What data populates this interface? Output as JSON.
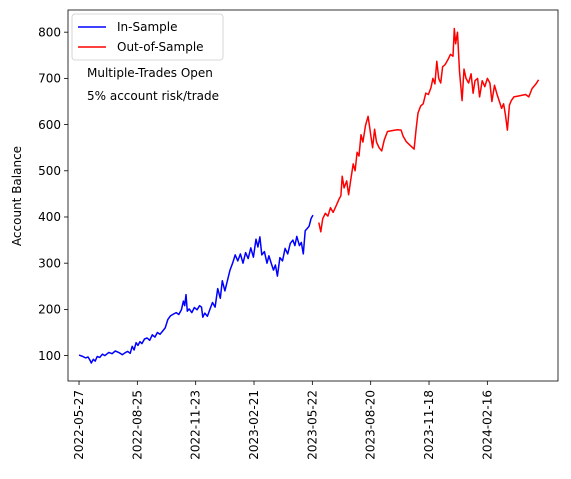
{
  "chart_data": {
    "type": "line",
    "title": "",
    "xlabel": "",
    "ylabel": "Account Balance",
    "xlim": [
      "2022-05-10",
      "2024-06-04"
    ],
    "ylim": [
      45,
      848
    ],
    "x_ticks": [
      "2022-05-27",
      "2022-08-25",
      "2022-11-23",
      "2023-02-21",
      "2023-05-22",
      "2023-08-20",
      "2023-11-18",
      "2024-02-16"
    ],
    "y_ticks": [
      100,
      200,
      300,
      400,
      500,
      600,
      700,
      800
    ],
    "grid": false,
    "legend_position": "top-left",
    "annotations": [
      "Multiple-Trades Open",
      "5% account risk/trade"
    ],
    "series": [
      {
        "name": "In-Sample",
        "color": "#0000ff",
        "points": [
          [
            "2022-05-27",
            101
          ],
          [
            "2022-06-02",
            98
          ],
          [
            "2022-06-06",
            95
          ],
          [
            "2022-06-10",
            97
          ],
          [
            "2022-06-13",
            90
          ],
          [
            "2022-06-15",
            84
          ],
          [
            "2022-06-18",
            92
          ],
          [
            "2022-06-21",
            88
          ],
          [
            "2022-06-24",
            98
          ],
          [
            "2022-06-28",
            96
          ],
          [
            "2022-07-02",
            103
          ],
          [
            "2022-07-06",
            100
          ],
          [
            "2022-07-12",
            107
          ],
          [
            "2022-07-17",
            104
          ],
          [
            "2022-07-22",
            110
          ],
          [
            "2022-07-27",
            107
          ],
          [
            "2022-08-02",
            102
          ],
          [
            "2022-08-06",
            106
          ],
          [
            "2022-08-10",
            109
          ],
          [
            "2022-08-14",
            105
          ],
          [
            "2022-08-17",
            120
          ],
          [
            "2022-08-20",
            112
          ],
          [
            "2022-08-23",
            128
          ],
          [
            "2022-08-26",
            122
          ],
          [
            "2022-08-29",
            130
          ],
          [
            "2022-09-01",
            126
          ],
          [
            "2022-09-05",
            136
          ],
          [
            "2022-09-09",
            138
          ],
          [
            "2022-09-13",
            133
          ],
          [
            "2022-09-17",
            145
          ],
          [
            "2022-09-21",
            140
          ],
          [
            "2022-09-25",
            150
          ],
          [
            "2022-09-29",
            146
          ],
          [
            "2022-10-03",
            153
          ],
          [
            "2022-10-07",
            160
          ],
          [
            "2022-10-11",
            178
          ],
          [
            "2022-10-15",
            186
          ],
          [
            "2022-10-20",
            190
          ],
          [
            "2022-10-24",
            193
          ],
          [
            "2022-10-28",
            189
          ],
          [
            "2022-11-01",
            199
          ],
          [
            "2022-11-04",
            218
          ],
          [
            "2022-11-06",
            208
          ],
          [
            "2022-11-08",
            232
          ],
          [
            "2022-11-10",
            196
          ],
          [
            "2022-11-13",
            201
          ],
          [
            "2022-11-17",
            193
          ],
          [
            "2022-11-21",
            204
          ],
          [
            "2022-11-25",
            199
          ],
          [
            "2022-11-29",
            208
          ],
          [
            "2022-12-02",
            205
          ],
          [
            "2022-12-04",
            183
          ],
          [
            "2022-12-07",
            192
          ],
          [
            "2022-12-11",
            185
          ],
          [
            "2022-12-15",
            200
          ],
          [
            "2022-12-19",
            215
          ],
          [
            "2022-12-23",
            205
          ],
          [
            "2022-12-27",
            245
          ],
          [
            "2022-12-31",
            224
          ],
          [
            "2023-01-03",
            262
          ],
          [
            "2023-01-07",
            240
          ],
          [
            "2023-01-11",
            262
          ],
          [
            "2023-01-15",
            285
          ],
          [
            "2023-01-19",
            300
          ],
          [
            "2023-01-23",
            318
          ],
          [
            "2023-01-27",
            305
          ],
          [
            "2023-01-31",
            320
          ],
          [
            "2023-02-04",
            300
          ],
          [
            "2023-02-08",
            323
          ],
          [
            "2023-02-12",
            310
          ],
          [
            "2023-02-16",
            333
          ],
          [
            "2023-02-20",
            313
          ],
          [
            "2023-02-24",
            352
          ],
          [
            "2023-02-27",
            335
          ],
          [
            "2023-03-02",
            357
          ],
          [
            "2023-03-05",
            318
          ],
          [
            "2023-03-09",
            325
          ],
          [
            "2023-03-13",
            300
          ],
          [
            "2023-03-16",
            316
          ],
          [
            "2023-03-20",
            298
          ],
          [
            "2023-03-23",
            285
          ],
          [
            "2023-03-26",
            296
          ],
          [
            "2023-03-29",
            272
          ],
          [
            "2023-04-02",
            312
          ],
          [
            "2023-04-06",
            305
          ],
          [
            "2023-04-10",
            332
          ],
          [
            "2023-04-14",
            320
          ],
          [
            "2023-04-18",
            343
          ],
          [
            "2023-04-22",
            350
          ],
          [
            "2023-04-25",
            338
          ],
          [
            "2023-04-28",
            358
          ],
          [
            "2023-05-02",
            338
          ],
          [
            "2023-05-05",
            345
          ],
          [
            "2023-05-08",
            320
          ],
          [
            "2023-05-11",
            370
          ],
          [
            "2023-05-14",
            375
          ],
          [
            "2023-05-17",
            380
          ],
          [
            "2023-05-20",
            397
          ],
          [
            "2023-05-23",
            404
          ]
        ]
      },
      {
        "name": "Out-of-Sample",
        "color": "#ff0000",
        "points": [
          [
            "2023-06-01",
            388
          ],
          [
            "2023-06-04",
            368
          ],
          [
            "2023-06-07",
            396
          ],
          [
            "2023-06-11",
            408
          ],
          [
            "2023-06-15",
            402
          ],
          [
            "2023-06-19",
            420
          ],
          [
            "2023-06-23",
            410
          ],
          [
            "2023-06-28",
            425
          ],
          [
            "2023-07-02",
            438
          ],
          [
            "2023-07-05",
            446
          ],
          [
            "2023-07-07",
            488
          ],
          [
            "2023-07-10",
            463
          ],
          [
            "2023-07-14",
            478
          ],
          [
            "2023-07-17",
            448
          ],
          [
            "2023-07-20",
            478
          ],
          [
            "2023-07-24",
            515
          ],
          [
            "2023-07-27",
            500
          ],
          [
            "2023-07-30",
            540
          ],
          [
            "2023-08-02",
            532
          ],
          [
            "2023-08-05",
            578
          ],
          [
            "2023-08-08",
            562
          ],
          [
            "2023-08-12",
            598
          ],
          [
            "2023-08-16",
            618
          ],
          [
            "2023-08-20",
            578
          ],
          [
            "2023-08-23",
            550
          ],
          [
            "2023-08-26",
            590
          ],
          [
            "2023-08-29",
            562
          ],
          [
            "2023-09-02",
            550
          ],
          [
            "2023-09-06",
            543
          ],
          [
            "2023-09-10",
            567
          ],
          [
            "2023-09-15",
            585
          ],
          [
            "2023-09-22",
            587
          ],
          [
            "2023-09-30",
            589
          ],
          [
            "2023-10-06",
            588
          ],
          [
            "2023-10-09",
            575
          ],
          [
            "2023-10-14",
            563
          ],
          [
            "2023-10-20",
            555
          ],
          [
            "2023-10-26",
            547
          ],
          [
            "2023-10-29",
            590
          ],
          [
            "2023-11-01",
            625
          ],
          [
            "2023-11-05",
            640
          ],
          [
            "2023-11-09",
            645
          ],
          [
            "2023-11-13",
            668
          ],
          [
            "2023-11-17",
            665
          ],
          [
            "2023-11-21",
            680
          ],
          [
            "2023-11-24",
            700
          ],
          [
            "2023-11-27",
            688
          ],
          [
            "2023-11-30",
            737
          ],
          [
            "2023-12-03",
            700
          ],
          [
            "2023-12-06",
            690
          ],
          [
            "2023-12-09",
            725
          ],
          [
            "2023-12-13",
            730
          ],
          [
            "2023-12-17",
            740
          ],
          [
            "2023-12-21",
            752
          ],
          [
            "2023-12-25",
            748
          ],
          [
            "2023-12-27",
            808
          ],
          [
            "2023-12-29",
            775
          ],
          [
            "2024-01-01",
            800
          ],
          [
            "2024-01-04",
            715
          ],
          [
            "2024-01-08",
            652
          ],
          [
            "2024-01-11",
            720
          ],
          [
            "2024-01-14",
            700
          ],
          [
            "2024-01-18",
            690
          ],
          [
            "2024-01-22",
            710
          ],
          [
            "2024-01-25",
            668
          ],
          [
            "2024-01-28",
            695
          ],
          [
            "2024-02-01",
            700
          ],
          [
            "2024-02-04",
            660
          ],
          [
            "2024-02-08",
            695
          ],
          [
            "2024-02-12",
            682
          ],
          [
            "2024-02-16",
            700
          ],
          [
            "2024-02-20",
            690
          ],
          [
            "2024-02-23",
            650
          ],
          [
            "2024-02-27",
            685
          ],
          [
            "2024-03-02",
            665
          ],
          [
            "2024-03-06",
            648
          ],
          [
            "2024-03-09",
            635
          ],
          [
            "2024-03-12",
            645
          ],
          [
            "2024-03-15",
            620
          ],
          [
            "2024-03-18",
            588
          ],
          [
            "2024-03-21",
            642
          ],
          [
            "2024-03-24",
            652
          ],
          [
            "2024-03-28",
            660
          ],
          [
            "2024-04-05",
            662
          ],
          [
            "2024-04-15",
            665
          ],
          [
            "2024-04-20",
            660
          ],
          [
            "2024-04-25",
            678
          ],
          [
            "2024-05-01",
            688
          ],
          [
            "2024-05-05",
            697
          ]
        ]
      }
    ]
  }
}
